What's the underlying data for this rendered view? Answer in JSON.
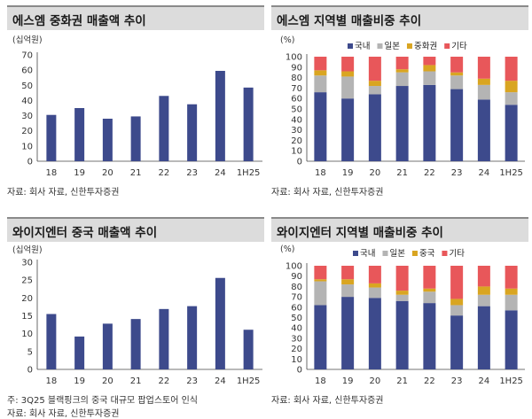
{
  "colors": {
    "bar": "#3d4a8c",
    "domestic": "#3d4a8c",
    "japan": "#b4b4b4",
    "china": "#d9a521",
    "other": "#e8575a",
    "title_bg": "#dcdcdc"
  },
  "panels": [
    {
      "title": "에스엠 중화권 매출액 추이",
      "source": "자료: 회사 자료, 신한투자증권",
      "note": "",
      "chart_data": {
        "type": "bar",
        "unit": "(십억원)",
        "categories": [
          "18",
          "19",
          "20",
          "21",
          "22",
          "23",
          "24",
          "1H25"
        ],
        "values": [
          30.5,
          35,
          28,
          29.5,
          43,
          37.5,
          59.5,
          48.5
        ],
        "ylim": [
          0,
          70
        ],
        "yticks": [
          0,
          10,
          20,
          30,
          40,
          50,
          60,
          70
        ]
      }
    },
    {
      "title": "에스엠 지역별 매출비중 추이",
      "source": "자료: 회사 자료, 신한투자증권",
      "note": "",
      "chart_data": {
        "type": "bar",
        "stacked": true,
        "unit": "(%)",
        "categories": [
          "18",
          "19",
          "20",
          "21",
          "22",
          "23",
          "24",
          "1H25"
        ],
        "series": [
          {
            "name": "국내",
            "color": "#3d4a8c",
            "values": [
              66,
              60,
              64,
              72,
              73,
              69,
              59,
              54
            ]
          },
          {
            "name": "일본",
            "color": "#b4b4b4",
            "values": [
              16,
              21,
              8,
              13,
              13,
              13,
              14,
              12
            ]
          },
          {
            "name": "중화권",
            "color": "#d9a521",
            "values": [
              5,
              5,
              5,
              3,
              6,
              3,
              6,
              11
            ]
          },
          {
            "name": "기타",
            "color": "#e8575a",
            "values": [
              13,
              14,
              23,
              12,
              8,
              15,
              21,
              23
            ]
          }
        ],
        "ylim": [
          0,
          100
        ],
        "yticks": [
          0,
          10,
          20,
          30,
          40,
          50,
          60,
          70,
          80,
          90,
          100
        ],
        "legend": "top"
      }
    },
    {
      "title": "와이지엔터 중국 매출액 추이",
      "source": "자료: 회사 자료, 신한투자증권",
      "note": "주: 3Q25 블랙핑크의 중국 대규모 팝업스토어 인식",
      "chart_data": {
        "type": "bar",
        "unit": "(십억원)",
        "categories": [
          "18",
          "19",
          "20",
          "21",
          "22",
          "23",
          "24",
          "1H25"
        ],
        "values": [
          15.5,
          9.2,
          12.8,
          14.1,
          16.9,
          17.7,
          25.6,
          11.1
        ],
        "ylim": [
          0,
          30
        ],
        "yticks": [
          0,
          5,
          10,
          15,
          20,
          25,
          30
        ]
      }
    },
    {
      "title": "와이지엔터 지역별 매출비중 추이",
      "source": "자료: 회사 자료, 신한투자증권",
      "note": "",
      "chart_data": {
        "type": "bar",
        "stacked": true,
        "unit": "(%)",
        "categories": [
          "18",
          "19",
          "20",
          "21",
          "22",
          "23",
          "24",
          "1H25"
        ],
        "series": [
          {
            "name": "국내",
            "color": "#3d4a8c",
            "values": [
              62,
              70,
              69,
              66,
              64,
              52,
              61,
              57
            ]
          },
          {
            "name": "일본",
            "color": "#b4b4b4",
            "values": [
              23,
              12,
              10,
              6,
              11,
              10,
              11,
              15
            ]
          },
          {
            "name": "중국",
            "color": "#d9a521",
            "values": [
              2,
              5,
              4,
              4,
              3,
              6,
              8,
              6
            ]
          },
          {
            "name": "기타",
            "color": "#e8575a",
            "values": [
              13,
              13,
              17,
              24,
              22,
              32,
              20,
              22
            ]
          }
        ],
        "ylim": [
          0,
          100
        ],
        "yticks": [
          0,
          10,
          20,
          30,
          40,
          50,
          60,
          70,
          80,
          90,
          100
        ],
        "legend": "top"
      }
    }
  ]
}
